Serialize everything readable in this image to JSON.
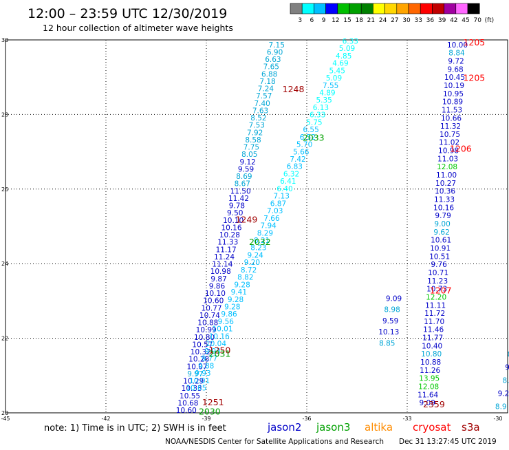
{
  "header": {
    "title": "12:00 – 23:59 UTC 12/30/2019",
    "subtitle": "12 hour collection of altimeter wave heights"
  },
  "color_scale": {
    "thresholds": [
      "3",
      "6",
      "9",
      "12",
      "15",
      "18",
      "21",
      "24",
      "27",
      "30",
      "33",
      "36",
      "39",
      "42",
      "45",
      "70",
      "(ft)"
    ],
    "colors": [
      "#808080",
      "#00ffff",
      "#00bfff",
      "#0000ff",
      "#00bf00",
      "#00a000",
      "#008000",
      "#ffff00",
      "#ffd700",
      "#ffa500",
      "#ff6600",
      "#ff0000",
      "#c00000",
      "#a000a0",
      "#ff66ff",
      "#000000"
    ]
  },
  "footer": {
    "note": "note:  1) Time is in UTC;  2) SWH is in feet",
    "credit": "NOAA/NESDIS Center for Satellite Applications and Research",
    "timestamp": "Dec 31 13:27:45 UTC 2019",
    "satellites": [
      {
        "name": "jason2",
        "color": "#0000c8"
      },
      {
        "name": "jason3",
        "color": "#00a000"
      },
      {
        "name": "altika",
        "color": "#ff8c00"
      },
      {
        "name": "cryosat",
        "color": "#ff0000"
      },
      {
        "name": "s3a",
        "color": "#a00000"
      }
    ]
  },
  "chart_data": {
    "type": "scatter",
    "xlim": [
      -45,
      -30
    ],
    "ylim": [
      20,
      30
    ],
    "x_ticks": [
      -45,
      -42,
      -39,
      -36,
      -33,
      -30
    ],
    "x_tick_labels": [
      "-45",
      "-42",
      "-39",
      "-36",
      "-33",
      "-30"
    ],
    "y_ticks": [
      20,
      22,
      24,
      26,
      28,
      30
    ],
    "y_tick_labels": [
      "20",
      "22",
      "24",
      "26",
      "28",
      "30"
    ],
    "grid": true,
    "tracks": [
      {
        "name": "track-a",
        "color": "#0000c8",
        "lon_start": -39.6,
        "lat_start": 20.0,
        "lon_end": -36.9,
        "lat_end": 29.8,
        "values": [
          "10.60",
          "10.68",
          "10.55",
          "10.33",
          "10.29",
          "9.97",
          "10.07",
          "10.28",
          "10.32",
          "10.57",
          "10.80",
          "10.99",
          "10.88",
          "10.74",
          "10.77",
          "10.60",
          "10.10",
          "9.86",
          "9.87",
          "10.98",
          "11.14",
          "11.24",
          "11.17",
          "11.33",
          "10.28",
          "10.16",
          "10.10",
          "9.50",
          "9.78",
          "11.42",
          "11.50",
          "8.67",
          "8.69",
          "9.59",
          "9.12",
          "8.05",
          "7.75",
          "8.58",
          "7.92",
          "7.53",
          "8.52",
          "7.63",
          "7.40",
          "7.57",
          "7.24",
          "7.18",
          "6.88",
          "7.65",
          "6.63",
          "6.90",
          "7.15"
        ],
        "value_colors": [
          "#0000c8",
          "#0000c8",
          "#0000c8",
          "#0000c8",
          "#0000c8",
          "#00a6d6",
          "#0000c8",
          "#0000c8",
          "#0000c8",
          "#0000c8",
          "#0000c8",
          "#0000c8",
          "#0000c8",
          "#0000c8",
          "#0000c8",
          "#0000c8",
          "#0000c8",
          "#0000c8",
          "#0000c8",
          "#0000c8",
          "#0000c8",
          "#0000c8",
          "#0000c8",
          "#0000c8",
          "#0000c8",
          "#0000c8",
          "#0000c8",
          "#0000c8",
          "#0000c8",
          "#0000c8",
          "#0000c8",
          "#00a6d6",
          "#00a6d6",
          "#0000c8",
          "#0000c8",
          "#00a6d6",
          "#00a6d6",
          "#00a6d6",
          "#00a6d6",
          "#00a6d6",
          "#00a6d6",
          "#00a6d6",
          "#00a6d6",
          "#00a6d6",
          "#00a6d6",
          "#00a6d6",
          "#00a6d6",
          "#00a6d6",
          "#00a6d6",
          "#00a6d6",
          "#00a6d6"
        ]
      },
      {
        "name": "track-b",
        "color": "#00bfff",
        "lon_start": -39.3,
        "lat_start": 20.6,
        "lon_end": -34.7,
        "lat_end": 29.9,
        "values": [
          "10.65",
          "10.01",
          "9.93",
          "9.88",
          "9.77",
          "9.93",
          "10.04",
          "10.16",
          "10.01",
          "9.56",
          "9.86",
          "9.28",
          "9.28",
          "9.41",
          "9.28",
          "8.82",
          "8.72",
          "9.20",
          "9.24",
          "8.23",
          "8.21",
          "8.29",
          "7.94",
          "7.66",
          "7.03",
          "6.87",
          "7.13",
          "6.40",
          "6.41",
          "6.32",
          "6.83",
          "7.42",
          "5.66",
          "5.70",
          "6.52",
          "6.55",
          "5.75",
          "6.33",
          "6.13",
          "5.35",
          "4.89",
          "7.55",
          "5.09",
          "5.45",
          "4.69",
          "4.85",
          "5.09",
          "6.33"
        ],
        "value_colors": [
          "#00bfff",
          "#00bfff",
          "#00bfff",
          "#00bfff",
          "#00bfff",
          "#00bfff",
          "#00bfff",
          "#00bfff",
          "#00bfff",
          "#00bfff",
          "#00bfff",
          "#00bfff",
          "#00bfff",
          "#00bfff",
          "#00bfff",
          "#00bfff",
          "#00bfff",
          "#00bfff",
          "#00bfff",
          "#00bfff",
          "#00bfff",
          "#00bfff",
          "#00bfff",
          "#00bfff",
          "#00bfff",
          "#00bfff",
          "#00bfff",
          "#00ffff",
          "#00ffff",
          "#00ffff",
          "#00bfff",
          "#00bfff",
          "#00bfff",
          "#00bfff",
          "#00bfff",
          "#00bfff",
          "#00ffff",
          "#00ffff",
          "#00ffff",
          "#00ffff",
          "#00ffff",
          "#00bfff",
          "#00ffff",
          "#00ffff",
          "#00ffff",
          "#00ffff",
          "#00ffff",
          "#00ffff"
        ]
      },
      {
        "name": "track-c",
        "color": "#0000c8",
        "lon_start": -32.4,
        "lat_start": 20.2,
        "lon_end": -31.5,
        "lat_end": 29.8,
        "values": [
          "9.09",
          "11.64",
          "12.08",
          "13.95",
          "11.26",
          "10.88",
          "10.80",
          "10.40",
          "11.77",
          "11.46",
          "11.70",
          "11.72",
          "11.11",
          "12.20",
          "10.73",
          "11.23",
          "10.71",
          "9.76",
          "10.51",
          "10.91",
          "10.61",
          "9.62",
          "9.00",
          "9.79",
          "10.16",
          "11.33",
          "10.36",
          "10.27",
          "11.00",
          "12.08",
          "11.03",
          "10.98",
          "11.02",
          "10.75",
          "11.32",
          "10.66",
          "11.53",
          "10.89",
          "10.95",
          "10.19",
          "10.45",
          "9.68",
          "9.72",
          "8.84",
          "10.00"
        ],
        "value_colors": [
          "#0000c8",
          "#0000c8",
          "#00c800",
          "#00c800",
          "#0000c8",
          "#0000c8",
          "#00a6d6",
          "#0000c8",
          "#0000c8",
          "#0000c8",
          "#0000c8",
          "#0000c8",
          "#0000c8",
          "#00c800",
          "#0000c8",
          "#0000c8",
          "#0000c8",
          "#0000c8",
          "#0000c8",
          "#0000c8",
          "#0000c8",
          "#00a6d6",
          "#00a6d6",
          "#0000c8",
          "#0000c8",
          "#0000c8",
          "#0000c8",
          "#0000c8",
          "#0000c8",
          "#00c800",
          "#0000c8",
          "#0000c8",
          "#0000c8",
          "#0000c8",
          "#0000c8",
          "#0000c8",
          "#0000c8",
          "#0000c8",
          "#0000c8",
          "#0000c8",
          "#0000c8",
          "#0000c8",
          "#0000c8",
          "#00a6d6",
          "#0000c8"
        ]
      },
      {
        "name": "track-d",
        "color": "#0000c8",
        "lon_start": -33.6,
        "lat_start": 21.8,
        "lon_end": -33.4,
        "lat_end": 23.0,
        "values": [
          "8.85",
          "10.13",
          "9.59",
          "8.98",
          "9.09"
        ],
        "value_colors": [
          "#00a6d6",
          "#0000c8",
          "#0000c8",
          "#00a6d6",
          "#0000c8"
        ]
      },
      {
        "name": "track-e",
        "color": "#00a6d6",
        "lon_start": -30.2,
        "lat_start": 20.1,
        "lon_end": -29.9,
        "lat_end": 21.5,
        "values": [
          "8.9",
          "9.2",
          "8.",
          "9.",
          "8."
        ],
        "value_colors": [
          "#00a6d6",
          "#0000c8",
          "#00a6d6",
          "#0000c8",
          "#00a6d6"
        ]
      }
    ],
    "annotations": [
      {
        "text": "1205",
        "lon": -31.0,
        "lat": 29.85,
        "color": "#ff0000"
      },
      {
        "text": "1205",
        "lon": -31.0,
        "lat": 28.9,
        "color": "#ff0000"
      },
      {
        "text": "1248",
        "lon": -36.4,
        "lat": 28.6,
        "color": "#a00000"
      },
      {
        "text": "2033",
        "lon": -35.8,
        "lat": 27.3,
        "color": "#00a000"
      },
      {
        "text": "1206",
        "lon": -31.4,
        "lat": 27.0,
        "color": "#ff0000"
      },
      {
        "text": "1249",
        "lon": -37.8,
        "lat": 25.1,
        "color": "#a00000"
      },
      {
        "text": "2032",
        "lon": -37.4,
        "lat": 24.5,
        "color": "#00a000"
      },
      {
        "text": "1207",
        "lon": -32.0,
        "lat": 23.2,
        "color": "#ff0000"
      },
      {
        "text": "1250",
        "lon": -38.6,
        "lat": 21.6,
        "color": "#a00000"
      },
      {
        "text": "2031",
        "lon": -38.6,
        "lat": 21.5,
        "color": "#00a000"
      },
      {
        "text": "1251",
        "lon": -38.8,
        "lat": 20.2,
        "color": "#a00000"
      },
      {
        "text": "2030",
        "lon": -38.9,
        "lat": 19.95,
        "color": "#00a000"
      },
      {
        "text": "2359",
        "lon": -32.2,
        "lat": 20.15,
        "color": "#a00000"
      }
    ]
  }
}
